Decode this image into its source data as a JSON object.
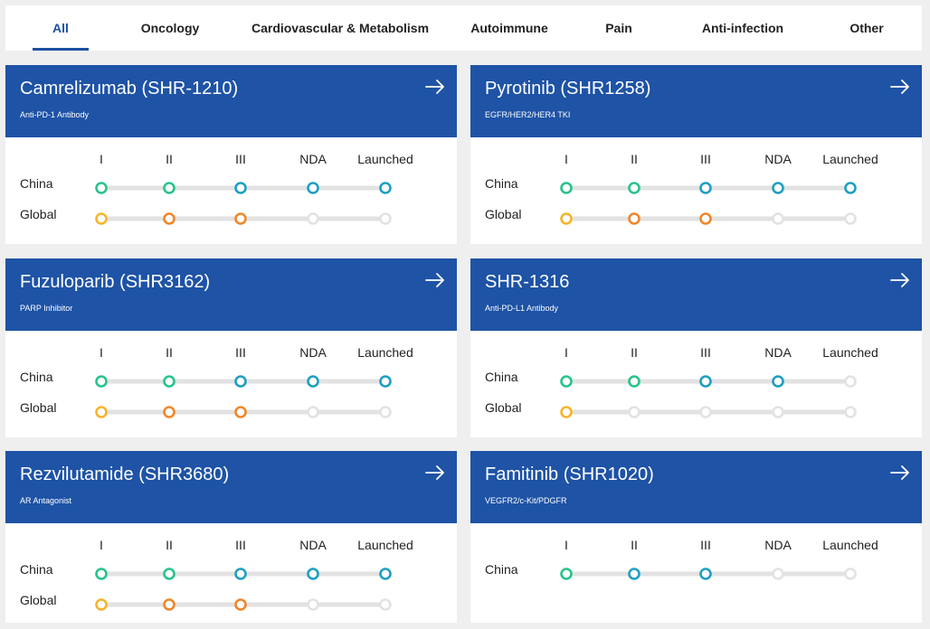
{
  "tabs": [
    {
      "label": "All",
      "active": true
    },
    {
      "label": "Oncology",
      "active": false
    },
    {
      "label": "Cardiovascular & Metabolism",
      "active": false
    },
    {
      "label": "Autoimmune",
      "active": false
    },
    {
      "label": "Pain",
      "active": false
    },
    {
      "label": "Anti-infection",
      "active": false
    },
    {
      "label": "Other",
      "active": false
    }
  ],
  "stages": [
    "I",
    "II",
    "III",
    "NDA",
    "Launched"
  ],
  "row_labels": {
    "china": "China",
    "global": "Global"
  },
  "colors": {
    "header_blue": "#1e53a6",
    "china_start": "#26c48a",
    "china_end": "#1e9fc2",
    "global_start": "#f5b52a",
    "global_end": "#f0862a",
    "inactive": "#e2e2e2"
  },
  "drugs": [
    {
      "name": "Camrelizumab (SHR-1210)",
      "target": "Anti-PD-1 Antibody",
      "china_stage": 5,
      "global_stage": 3
    },
    {
      "name": "Pyrotinib (SHR1258)",
      "target": "EGFR/HER2/HER4 TKI",
      "china_stage": 5,
      "global_stage": 3
    },
    {
      "name": "Fuzuloparib (SHR3162)",
      "target": "PARP Inhibitor",
      "china_stage": 5,
      "global_stage": 3
    },
    {
      "name": "SHR-1316",
      "target": "Anti-PD-L1 Antibody",
      "china_stage": 4,
      "global_stage": 1
    },
    {
      "name": "Rezvilutamide (SHR3680)",
      "target": "AR Antagonist",
      "china_stage": 5,
      "global_stage": 3
    },
    {
      "name": "Famitinib (SHR1020)",
      "target": "VEGFR2/c-Kit/PDGFR",
      "china_stage": 3,
      "global_stage": 0
    }
  ]
}
